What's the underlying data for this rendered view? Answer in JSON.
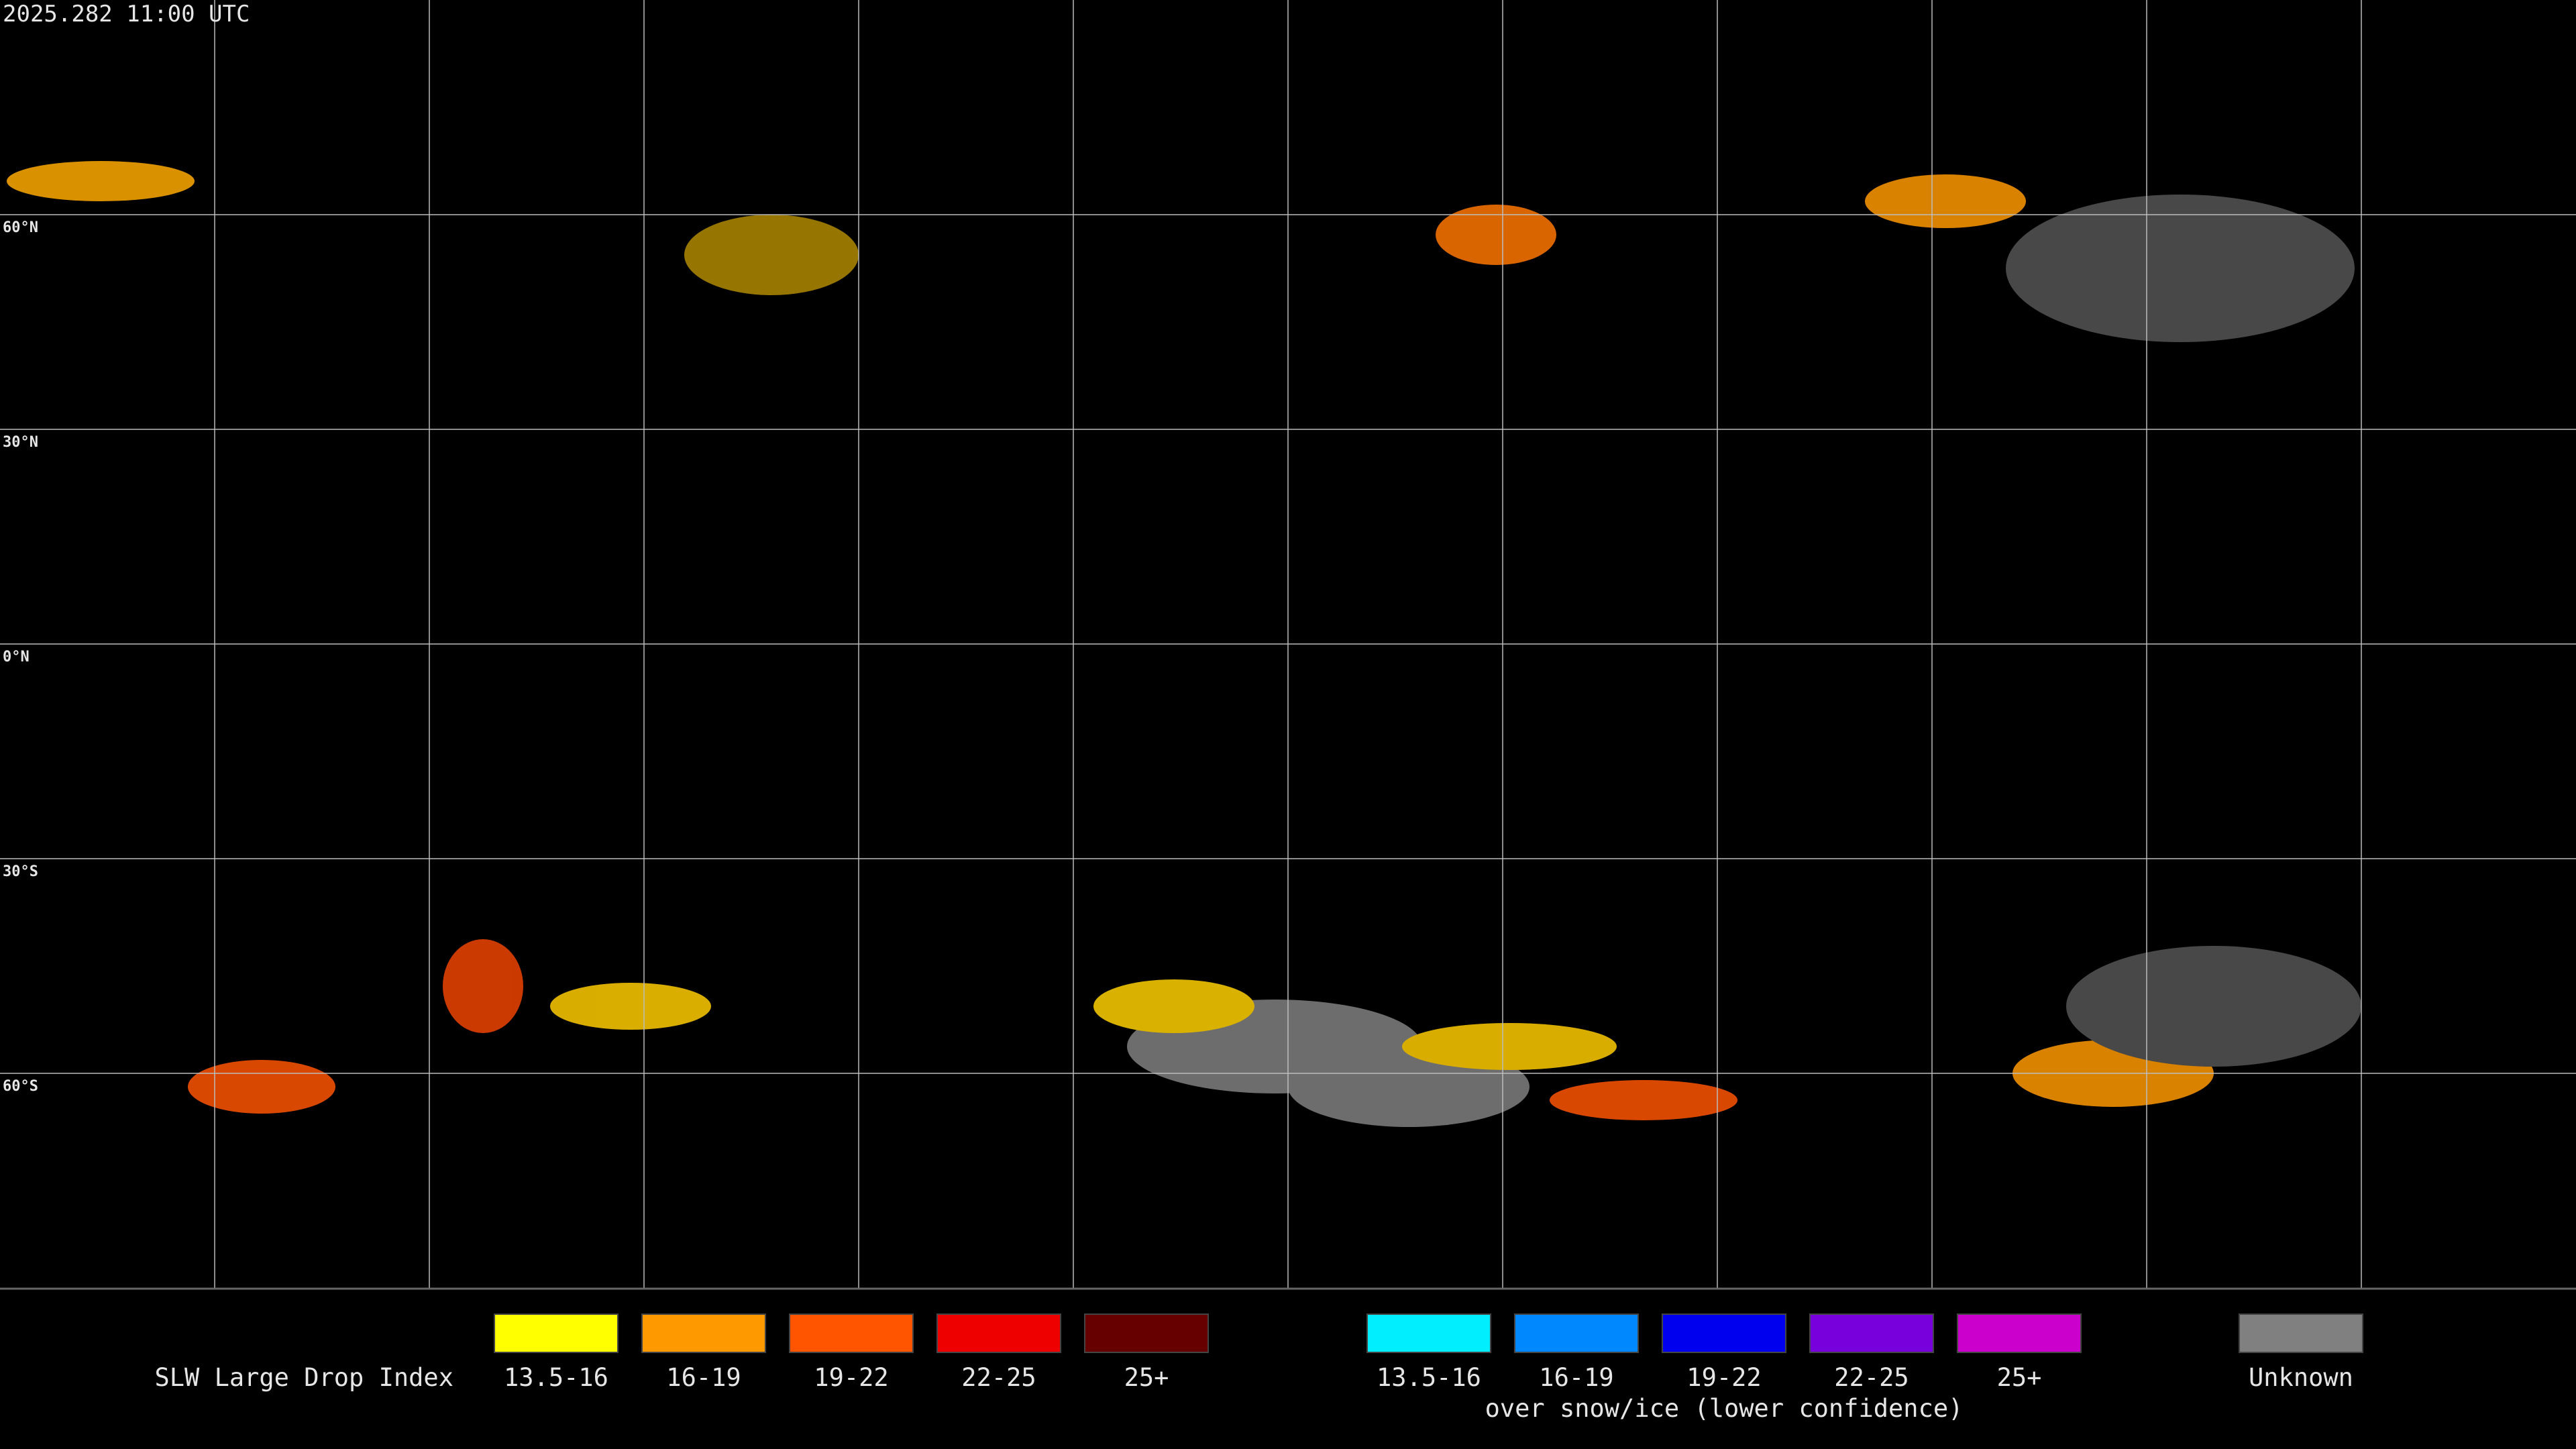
{
  "header": {
    "timestamp": "2025.282 11:00 UTC"
  },
  "map": {
    "latitude_labels": [
      "60°N",
      "30°N",
      "0°N",
      "30°S",
      "60°S"
    ]
  },
  "legend": {
    "title": "SLW Large Drop Index",
    "groups": [
      {
        "items": [
          {
            "label": "13.5-16",
            "color": "#ffff00"
          },
          {
            "label": "16-19",
            "color": "#ff9900"
          },
          {
            "label": "19-22",
            "color": "#ff5500"
          },
          {
            "label": "22-25",
            "color": "#ee0000"
          },
          {
            "label": "25+",
            "color": "#660000"
          }
        ]
      },
      {
        "items": [
          {
            "label": "13.5-16",
            "color": "#00eeff"
          },
          {
            "label": "16-19",
            "color": "#0088ff"
          },
          {
            "label": "19-22",
            "color": "#0000ee"
          },
          {
            "label": "22-25",
            "color": "#7700dd"
          },
          {
            "label": "25+",
            "color": "#cc00cc"
          }
        ],
        "caption": "over snow/ice (lower confidence)"
      },
      {
        "items": [
          {
            "label": "Unknown",
            "color": "#808080"
          }
        ]
      }
    ]
  }
}
